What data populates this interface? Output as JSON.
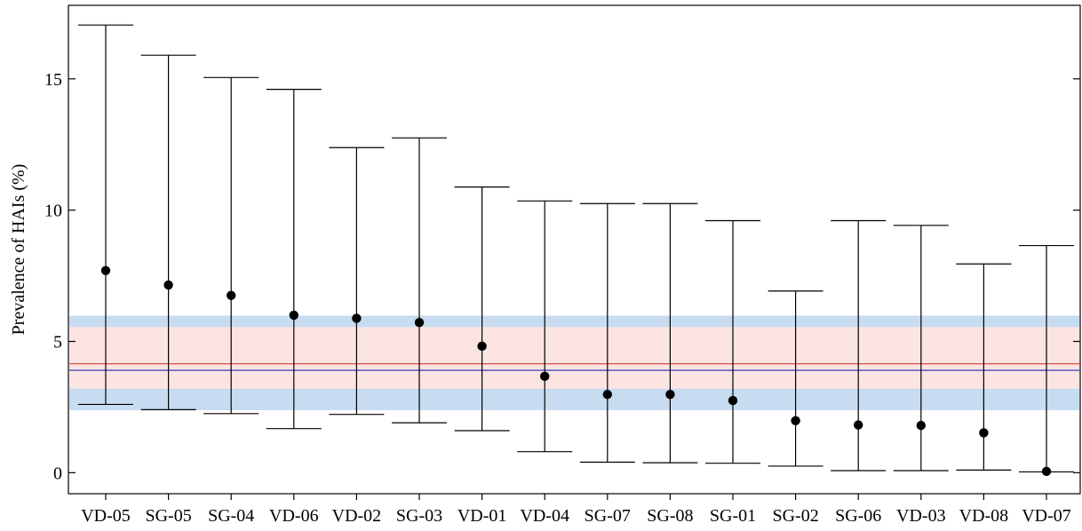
{
  "chart_data": {
    "type": "scatter",
    "title": "",
    "xlabel": "",
    "ylabel": "Prevalence of HAIs (%)",
    "ylim": [
      -0.8,
      17.8
    ],
    "yticks": [
      0,
      5,
      10,
      15
    ],
    "grid": false,
    "categories": [
      "VD-05",
      "SG-05",
      "SG-04",
      "VD-06",
      "VD-02",
      "SG-03",
      "VD-01",
      "VD-04",
      "SG-07",
      "SG-08",
      "SG-01",
      "SG-02",
      "SG-06",
      "VD-03",
      "VD-08",
      "VD-07"
    ],
    "series": [
      {
        "values": [
          7.7,
          7.15,
          6.75,
          6.0,
          5.88,
          5.72,
          4.82,
          3.67,
          2.98,
          2.98,
          2.75,
          1.98,
          1.82,
          1.8,
          1.52,
          0.05
        ],
        "lower": [
          2.6,
          2.4,
          2.25,
          1.68,
          2.22,
          1.9,
          1.6,
          0.8,
          0.4,
          0.38,
          0.36,
          0.25,
          0.08,
          0.08,
          0.1,
          0.03
        ],
        "upper": [
          17.05,
          15.9,
          15.05,
          14.6,
          12.38,
          12.75,
          10.88,
          10.35,
          10.25,
          10.25,
          9.6,
          6.92,
          9.6,
          9.42,
          7.95,
          8.65
        ],
        "color": "#000000"
      }
    ],
    "reference_lines": [
      {
        "value": 4.15,
        "color": "#e05040"
      },
      {
        "value": 3.9,
        "color": "#3a3ac0"
      }
    ],
    "reference_bands": [
      {
        "low": 2.38,
        "high": 5.98,
        "color": "#c7dcf1"
      },
      {
        "low": 3.2,
        "high": 5.55,
        "color": "#fbe4e1"
      }
    ]
  }
}
